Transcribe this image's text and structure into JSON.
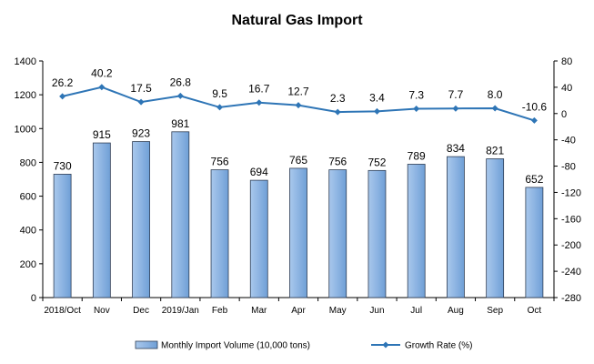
{
  "chart_data": {
    "type": "bar",
    "title": "Natural Gas Import",
    "categories": [
      "2018/Oct",
      "Nov",
      "Dec",
      "2019/Jan",
      "Feb",
      "Mar",
      "Apr",
      "May",
      "Jun",
      "Jul",
      "Aug",
      "Sep",
      "Oct"
    ],
    "series": [
      {
        "name": "Monthly Import Volume (10,000 tons)",
        "type": "bar",
        "axis": "left",
        "values": [
          730,
          915,
          923,
          981,
          756,
          694,
          765,
          756,
          752,
          789,
          834,
          821,
          652
        ]
      },
      {
        "name": "Growth Rate (%)",
        "type": "line",
        "axis": "right",
        "values": [
          26.2,
          40.2,
          17.5,
          26.8,
          9.5,
          16.7,
          12.7,
          2.3,
          3.4,
          7.3,
          7.7,
          8.0,
          -10.6
        ]
      }
    ],
    "ylim_left": [
      0,
      1400
    ],
    "yticks_left": [
      0,
      200,
      400,
      600,
      800,
      1000,
      1200,
      1400
    ],
    "ylim_right": [
      -280,
      80
    ],
    "yticks_right": [
      80,
      40,
      0,
      -40,
      -80,
      -120,
      -160,
      -200,
      -240,
      -280
    ],
    "bar_color": "#8DB4E2",
    "line_color": "#2E75B6",
    "legend_position": "bottom",
    "grid": false
  }
}
